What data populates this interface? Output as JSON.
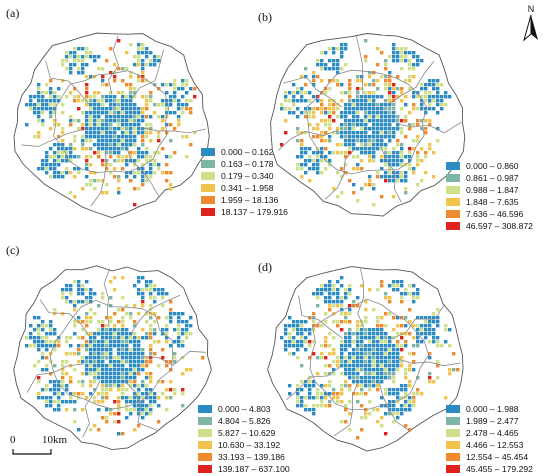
{
  "north_arrow": {
    "label": "N",
    "icon": "north-arrow-icon"
  },
  "scale_bar": {
    "start": "0",
    "end": "10km"
  },
  "colors": {
    "class1": "#2b8cc4",
    "class2": "#7fb5a6",
    "class3": "#cfe08c",
    "class4": "#f2c44d",
    "class5": "#ee8a2f",
    "class6": "#e0221f",
    "boundary": "#888888"
  },
  "panels": [
    {
      "label": "(a)",
      "legend": [
        "0.000 – 0.162",
        "0.163 – 0.178",
        "0.179 – 0.340",
        "0.341 – 1.958",
        "1.959 – 18.136",
        "18.137 – 179.916"
      ]
    },
    {
      "label": "(b)",
      "legend": [
        "0.000 – 0.860",
        "0.861 – 0.987",
        "0.988 – 1.847",
        "1.848 – 7.635",
        "7.636 – 46.596",
        "46.597 – 308.872"
      ]
    },
    {
      "label": "(c)",
      "legend": [
        "0.000 – 4.803",
        "4.804 – 5.826",
        "5.827 – 10.629",
        "10.630 – 33.192",
        "33.193 – 139.186",
        "139.187 – 637.100"
      ]
    },
    {
      "label": "(d)",
      "legend": [
        "0.000 – 1.988",
        "1.989 – 2.477",
        "2.478 – 4.465",
        "4.466 – 12.553",
        "12.554 – 45.454",
        "45.455 – 179.292"
      ]
    }
  ]
}
